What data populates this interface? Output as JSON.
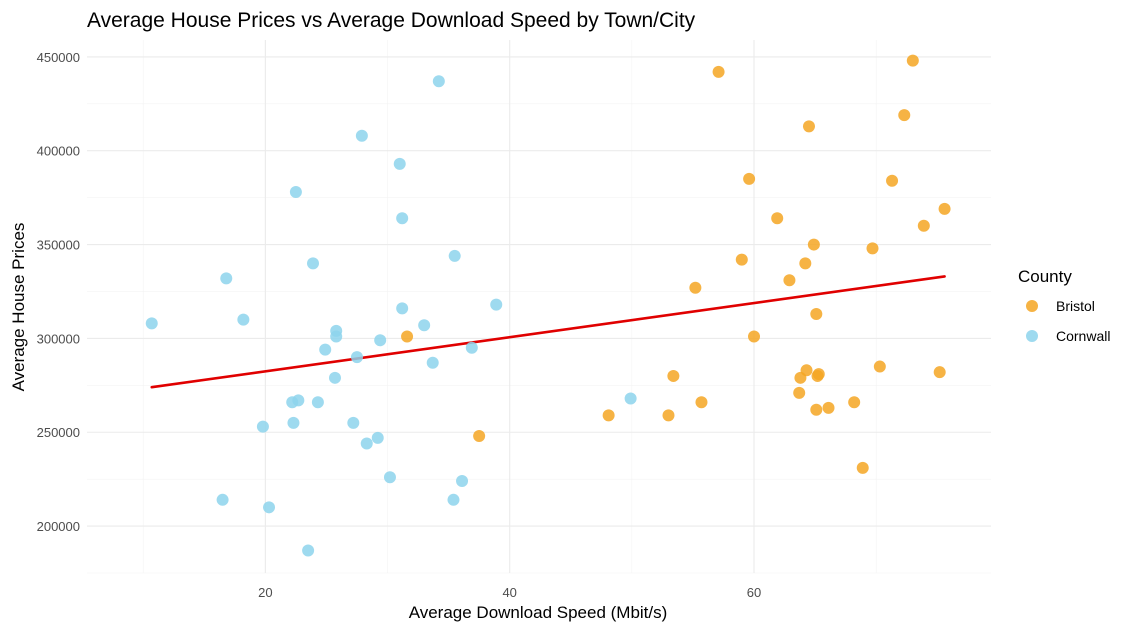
{
  "chart_data": {
    "type": "scatter",
    "title": "Average House Prices vs Average Download Speed by Town/City",
    "xlabel": "Average Download Speed (Mbit/s)",
    "ylabel": "Average House Prices",
    "xlim": [
      5.4,
      79.4
    ],
    "ylim": [
      175000,
      459000
    ],
    "x_ticks": [
      20,
      40,
      60
    ],
    "y_ticks": [
      200000,
      250000,
      300000,
      350000,
      400000,
      450000
    ],
    "grid": true,
    "legend": {
      "title": "County",
      "position": "right",
      "entries": [
        {
          "name": "Bristol",
          "color": "#F5A623"
        },
        {
          "name": "Cornwall",
          "color": "#8DD3EC"
        }
      ]
    },
    "series": [
      {
        "name": "Bristol",
        "color": "#F5A623",
        "points": [
          [
            57.1,
            442000
          ],
          [
            73.0,
            448000
          ],
          [
            64.5,
            413000
          ],
          [
            72.3,
            419000
          ],
          [
            59.6,
            385000
          ],
          [
            71.3,
            384000
          ],
          [
            75.6,
            369000
          ],
          [
            61.9,
            364000
          ],
          [
            73.9,
            360000
          ],
          [
            64.9,
            350000
          ],
          [
            69.7,
            348000
          ],
          [
            59.0,
            342000
          ],
          [
            64.2,
            340000
          ],
          [
            55.2,
            327000
          ],
          [
            62.9,
            331000
          ],
          [
            65.1,
            313000
          ],
          [
            31.6,
            301000
          ],
          [
            60.0,
            301000
          ],
          [
            64.3,
            283000
          ],
          [
            63.8,
            279000
          ],
          [
            65.2,
            280000
          ],
          [
            65.3,
            281000
          ],
          [
            70.3,
            285000
          ],
          [
            75.2,
            282000
          ],
          [
            53.4,
            280000
          ],
          [
            63.7,
            271000
          ],
          [
            55.7,
            266000
          ],
          [
            68.2,
            266000
          ],
          [
            66.1,
            263000
          ],
          [
            65.1,
            262000
          ],
          [
            48.1,
            259000
          ],
          [
            53.0,
            259000
          ],
          [
            37.5,
            248000
          ],
          [
            68.9,
            231000
          ]
        ]
      },
      {
        "name": "Cornwall",
        "color": "#8DD3EC",
        "points": [
          [
            34.2,
            437000
          ],
          [
            27.9,
            408000
          ],
          [
            31.0,
            393000
          ],
          [
            22.5,
            378000
          ],
          [
            31.2,
            364000
          ],
          [
            35.5,
            344000
          ],
          [
            23.9,
            340000
          ],
          [
            16.8,
            332000
          ],
          [
            10.7,
            308000
          ],
          [
            18.2,
            310000
          ],
          [
            31.2,
            316000
          ],
          [
            38.9,
            318000
          ],
          [
            33.0,
            307000
          ],
          [
            25.8,
            304000
          ],
          [
            25.8,
            301000
          ],
          [
            29.4,
            299000
          ],
          [
            24.9,
            294000
          ],
          [
            27.5,
            290000
          ],
          [
            33.7,
            287000
          ],
          [
            36.9,
            295000
          ],
          [
            25.7,
            279000
          ],
          [
            49.9,
            268000
          ],
          [
            22.7,
            267000
          ],
          [
            22.2,
            266000
          ],
          [
            24.3,
            266000
          ],
          [
            27.2,
            255000
          ],
          [
            22.3,
            255000
          ],
          [
            19.8,
            253000
          ],
          [
            29.2,
            247000
          ],
          [
            28.3,
            244000
          ],
          [
            30.2,
            226000
          ],
          [
            36.1,
            224000
          ],
          [
            35.4,
            214000
          ],
          [
            16.5,
            214000
          ],
          [
            20.3,
            210000
          ],
          [
            23.5,
            187000
          ]
        ]
      }
    ],
    "trend_line": {
      "color": "#E00000",
      "x": [
        10.7,
        75.6
      ],
      "y": [
        274000,
        333000
      ]
    }
  }
}
